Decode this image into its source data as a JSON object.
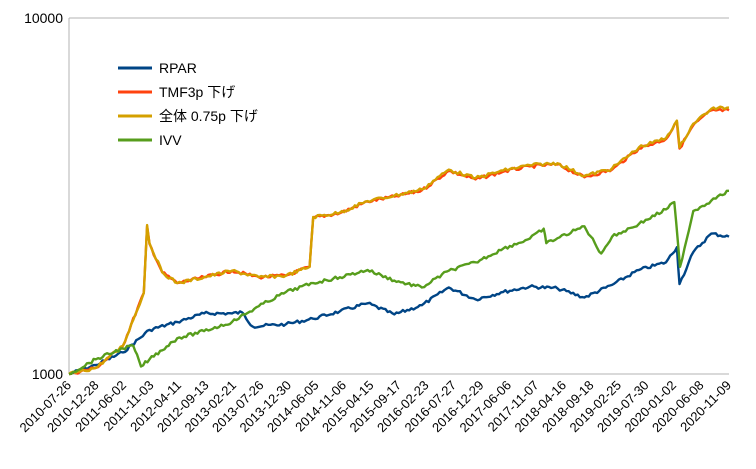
{
  "chart_data": {
    "type": "line",
    "y_scale": "log",
    "ylim": [
      1000,
      10000
    ],
    "y_ticks": [
      "10000",
      "1000"
    ],
    "x_start": "2010-07-26",
    "x_end": "2020-12-31",
    "categories": [
      "2010-07-26",
      "2010-12-28",
      "2011-06-02",
      "2011-11-03",
      "2012-04-11",
      "2012-09-13",
      "2013-02-21",
      "2013-07-26",
      "2013-12-30",
      "2014-06-05",
      "2014-11-06",
      "2015-04-15",
      "2015-09-17",
      "2016-02-23",
      "2016-07-27",
      "2016-12-29",
      "2017-06-06",
      "2017-11-07",
      "2018-04-16",
      "2018-09-18",
      "2019-02-25",
      "2019-07-30",
      "2020-01-02",
      "2020-06-08",
      "2020-11-09"
    ],
    "legend_position": "top-left",
    "grid": "horizontal",
    "series": [
      {
        "name": "RPAR",
        "color": "#004586",
        "points": [
          [
            "2010-07-26",
            1000
          ],
          [
            "2010-12-28",
            1060
          ],
          [
            "2011-06-02",
            1150
          ],
          [
            "2011-11-03",
            1330
          ],
          [
            "2012-04-11",
            1400
          ],
          [
            "2012-09-13",
            1480
          ],
          [
            "2013-02-21",
            1480
          ],
          [
            "2013-04-20",
            1490
          ],
          [
            "2013-06-20",
            1360
          ],
          [
            "2013-12-30",
            1380
          ],
          [
            "2014-06-05",
            1430
          ],
          [
            "2014-11-06",
            1500
          ],
          [
            "2015-04-15",
            1580
          ],
          [
            "2015-09-17",
            1470
          ],
          [
            "2016-02-23",
            1560
          ],
          [
            "2016-07-27",
            1750
          ],
          [
            "2016-12-29",
            1620
          ],
          [
            "2017-06-06",
            1700
          ],
          [
            "2017-11-07",
            1760
          ],
          [
            "2018-04-16",
            1740
          ],
          [
            "2018-09-18",
            1640
          ],
          [
            "2019-02-25",
            1780
          ],
          [
            "2019-07-30",
            1960
          ],
          [
            "2020-01-02",
            2060
          ],
          [
            "2020-03-05",
            2270
          ],
          [
            "2020-03-20",
            1790
          ],
          [
            "2020-06-08",
            2200
          ],
          [
            "2020-09-20",
            2480
          ],
          [
            "2020-12-31",
            2430
          ]
        ]
      },
      {
        "name": "TMF3p 下げ",
        "color": "#ff420e",
        "points": [
          [
            "2010-07-26",
            1000
          ],
          [
            "2010-12-28",
            1040
          ],
          [
            "2011-06-02",
            1200
          ],
          [
            "2011-10-01",
            1690
          ],
          [
            "2011-10-20",
            2600
          ],
          [
            "2011-11-03",
            2320
          ],
          [
            "2012-01-15",
            1930
          ],
          [
            "2012-04-11",
            1800
          ],
          [
            "2012-09-13",
            1870
          ],
          [
            "2013-02-21",
            1950
          ],
          [
            "2013-07-26",
            1870
          ],
          [
            "2013-12-30",
            1890
          ],
          [
            "2014-05-15",
            2000
          ],
          [
            "2014-06-05",
            2750
          ],
          [
            "2014-11-06",
            2830
          ],
          [
            "2015-04-15",
            3050
          ],
          [
            "2015-09-17",
            3150
          ],
          [
            "2016-02-23",
            3280
          ],
          [
            "2016-07-27",
            3720
          ],
          [
            "2016-12-29",
            3520
          ],
          [
            "2017-06-06",
            3700
          ],
          [
            "2017-11-07",
            3830
          ],
          [
            "2018-04-16",
            3880
          ],
          [
            "2018-09-18",
            3570
          ],
          [
            "2019-02-25",
            3750
          ],
          [
            "2019-07-30",
            4300
          ],
          [
            "2020-01-02",
            4570
          ],
          [
            "2020-03-05",
            5100
          ],
          [
            "2020-03-20",
            4300
          ],
          [
            "2020-06-08",
            5000
          ],
          [
            "2020-09-20",
            5500
          ],
          [
            "2020-12-31",
            5500
          ]
        ]
      },
      {
        "name": "全体 0.75p 下げ",
        "color": "#d4a000",
        "points": [
          [
            "2010-07-26",
            1000
          ],
          [
            "2010-12-28",
            1040
          ],
          [
            "2011-06-02",
            1200
          ],
          [
            "2011-10-01",
            1690
          ],
          [
            "2011-10-20",
            2620
          ],
          [
            "2011-11-03",
            2330
          ],
          [
            "2012-01-15",
            1930
          ],
          [
            "2012-04-11",
            1800
          ],
          [
            "2012-09-13",
            1870
          ],
          [
            "2013-02-21",
            1950
          ],
          [
            "2013-07-26",
            1870
          ],
          [
            "2013-12-30",
            1890
          ],
          [
            "2014-05-15",
            2000
          ],
          [
            "2014-06-05",
            2760
          ],
          [
            "2014-11-06",
            2840
          ],
          [
            "2015-04-15",
            3060
          ],
          [
            "2015-09-17",
            3170
          ],
          [
            "2016-02-23",
            3300
          ],
          [
            "2016-07-27",
            3750
          ],
          [
            "2016-12-29",
            3550
          ],
          [
            "2017-06-06",
            3730
          ],
          [
            "2017-11-07",
            3860
          ],
          [
            "2018-04-16",
            3910
          ],
          [
            "2018-09-18",
            3600
          ],
          [
            "2019-02-25",
            3780
          ],
          [
            "2019-07-30",
            4330
          ],
          [
            "2020-01-02",
            4600
          ],
          [
            "2020-03-05",
            5150
          ],
          [
            "2020-03-20",
            4330
          ],
          [
            "2020-06-08",
            5050
          ],
          [
            "2020-09-20",
            5560
          ],
          [
            "2020-12-31",
            5600
          ]
        ]
      },
      {
        "name": "IVV",
        "color": "#579d1c",
        "points": [
          [
            "2010-07-26",
            1000
          ],
          [
            "2010-12-28",
            1100
          ],
          [
            "2011-06-02",
            1180
          ],
          [
            "2011-08-01",
            1200
          ],
          [
            "2011-09-15",
            1050
          ],
          [
            "2011-11-03",
            1100
          ],
          [
            "2012-04-11",
            1260
          ],
          [
            "2012-09-13",
            1320
          ],
          [
            "2013-02-21",
            1400
          ],
          [
            "2013-07-26",
            1550
          ],
          [
            "2013-12-30",
            1700
          ],
          [
            "2014-06-05",
            1800
          ],
          [
            "2014-11-06",
            1870
          ],
          [
            "2015-04-15",
            1960
          ],
          [
            "2015-09-17",
            1830
          ],
          [
            "2016-02-23",
            1750
          ],
          [
            "2016-07-27",
            1950
          ],
          [
            "2016-12-29",
            2060
          ],
          [
            "2017-06-06",
            2250
          ],
          [
            "2017-11-07",
            2400
          ],
          [
            "2018-01-26",
            2560
          ],
          [
            "2018-02-10",
            2330
          ],
          [
            "2018-09-18",
            2600
          ],
          [
            "2018-12-24",
            2180
          ],
          [
            "2019-02-25",
            2430
          ],
          [
            "2019-07-30",
            2640
          ],
          [
            "2020-01-02",
            2900
          ],
          [
            "2020-02-19",
            3040
          ],
          [
            "2020-03-23",
            2000
          ],
          [
            "2020-06-08",
            2870
          ],
          [
            "2020-09-20",
            3070
          ],
          [
            "2020-12-31",
            3270
          ]
        ]
      }
    ]
  }
}
